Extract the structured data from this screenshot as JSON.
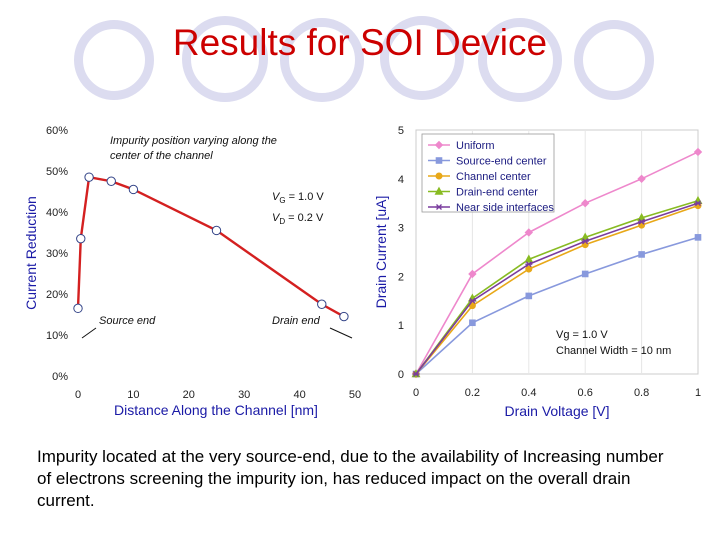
{
  "title": "Results for SOI Device",
  "caption": "Impurity located at the very source-end, due to the availability of Increasing number of electrons screening the impurity ion, has reduced impact on the overall drain current.",
  "chart_data": [
    {
      "type": "line",
      "xlabel": "Distance Along the Channel [nm]",
      "ylabel": "Current Reduction",
      "xlim": [
        0,
        50
      ],
      "ylim": [
        0,
        60
      ],
      "x_ticks": [
        "0",
        "10",
        "20",
        "30",
        "40",
        "50"
      ],
      "y_ticks": [
        "0%",
        "10%",
        "20%",
        "30%",
        "40%",
        "50%",
        "60%"
      ],
      "series": [
        {
          "color": "#d42020",
          "x": [
            0,
            0.5,
            2,
            6,
            10,
            25,
            44,
            48
          ],
          "values": [
            16.5,
            33.5,
            48.5,
            47.5,
            45.5,
            35.5,
            17.5,
            14.5
          ]
        }
      ],
      "annotations": {
        "top": [
          "Impurity position varying along the",
          "center of the channel"
        ],
        "vg": "V",
        "vg_sub": "G",
        "vg_value": "= 1.0 V",
        "vd": "V",
        "vd_sub": "D",
        "vd_value": "= 0.2 V",
        "source_end": "Source end",
        "drain_end": "Drain end"
      }
    },
    {
      "type": "line",
      "xlabel": "Drain Voltage [V]",
      "ylabel": "Drain Current [uA]",
      "xlim": [
        0,
        1
      ],
      "ylim": [
        0,
        5
      ],
      "x_ticks": [
        "0",
        "0.2",
        "0.4",
        "0.6",
        "0.8",
        "1"
      ],
      "y_ticks": [
        "0",
        "1",
        "2",
        "3",
        "4",
        "5"
      ],
      "legend_position": "top-left",
      "x": [
        0,
        0.2,
        0.4,
        0.6,
        0.8,
        1.0
      ],
      "series": [
        {
          "name": "Uniform",
          "color": "#ee88cc",
          "marker": "diamond",
          "values": [
            0,
            2.05,
            2.9,
            3.5,
            4.0,
            4.55
          ]
        },
        {
          "name": "Source-end center",
          "color": "#8899dd",
          "marker": "square",
          "values": [
            0,
            1.05,
            1.6,
            2.05,
            2.45,
            2.8
          ]
        },
        {
          "name": "Channel center",
          "color": "#e8a818",
          "marker": "circle",
          "values": [
            0,
            1.4,
            2.15,
            2.65,
            3.05,
            3.45
          ]
        },
        {
          "name": "Drain-end center",
          "color": "#88bb22",
          "marker": "triangle",
          "values": [
            0,
            1.55,
            2.35,
            2.8,
            3.2,
            3.55
          ]
        },
        {
          "name": "Near side interfaces",
          "color": "#7a3c9e",
          "marker": "star",
          "values": [
            0,
            1.5,
            2.25,
            2.72,
            3.12,
            3.5
          ]
        }
      ],
      "annotations": {
        "vg": "Vg = 1.0 V",
        "width": "Channel Width = 10 nm"
      }
    }
  ]
}
